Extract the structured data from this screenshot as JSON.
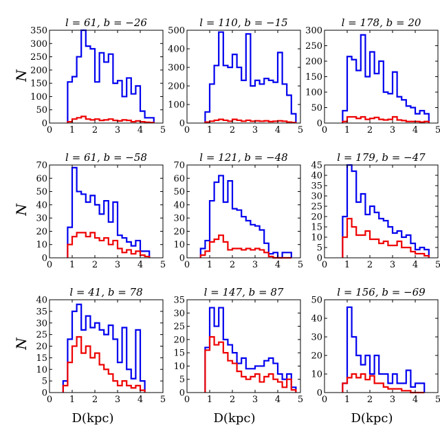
{
  "figure": {
    "ylabel": "N",
    "xlabel": "D(kpc)"
  },
  "colors": {
    "blue": "#0000ee",
    "red": "#ee0000"
  },
  "chart_data": [
    {
      "type": "histogram",
      "title": "l = 61, b = −26",
      "xlabel": "",
      "ylabel": "N",
      "xlim": [
        0,
        5
      ],
      "ylim": [
        0,
        350
      ],
      "xticks": [
        0,
        1,
        2,
        3,
        4,
        5
      ],
      "yticks": [
        0,
        50,
        100,
        150,
        200,
        250,
        300,
        350
      ],
      "bin_width": 0.2,
      "series": [
        {
          "name": "blue",
          "color": "#0000ee",
          "bin_starts": [
            0.8,
            1.0,
            1.2,
            1.4,
            1.6,
            1.8,
            2.0,
            2.2,
            2.4,
            2.6,
            2.8,
            3.0,
            3.2,
            3.4,
            3.6,
            3.8,
            4.0,
            4.2,
            4.4
          ],
          "counts": [
            155,
            175,
            250,
            350,
            290,
            280,
            155,
            265,
            230,
            260,
            150,
            160,
            100,
            170,
            110,
            140,
            45,
            20,
            20
          ]
        },
        {
          "name": "red",
          "color": "#ee0000",
          "bin_starts": [
            0.8,
            1.0,
            1.2,
            1.4,
            1.6,
            1.8,
            2.0,
            2.2,
            2.4,
            2.6,
            2.8,
            3.0,
            3.2,
            3.4,
            3.6,
            3.8,
            4.0,
            4.2,
            4.4
          ],
          "counts": [
            5,
            15,
            20,
            25,
            15,
            12,
            15,
            10,
            12,
            15,
            10,
            8,
            12,
            10,
            5,
            8,
            5,
            3,
            2
          ]
        }
      ]
    },
    {
      "type": "histogram",
      "title": "l = 110, b = −15",
      "xlabel": "",
      "ylabel": "",
      "xlim": [
        0,
        5
      ],
      "ylim": [
        0,
        500
      ],
      "xticks": [
        0,
        1,
        2,
        3,
        4,
        5
      ],
      "yticks": [
        0,
        100,
        200,
        300,
        400,
        500
      ],
      "bin_width": 0.2,
      "series": [
        {
          "name": "blue",
          "color": "#0000ee",
          "bin_starts": [
            0.8,
            1.0,
            1.2,
            1.4,
            1.6,
            1.8,
            2.0,
            2.2,
            2.4,
            2.6,
            2.8,
            3.0,
            3.2,
            3.4,
            3.6,
            3.8,
            4.0,
            4.2,
            4.4,
            4.6
          ],
          "counts": [
            60,
            210,
            310,
            490,
            310,
            300,
            370,
            300,
            230,
            480,
            200,
            230,
            210,
            240,
            230,
            220,
            380,
            210,
            150,
            50
          ]
        },
        {
          "name": "red",
          "color": "#ee0000",
          "bin_starts": [
            0.8,
            1.0,
            1.2,
            1.4,
            1.6,
            1.8,
            2.0,
            2.2,
            2.4,
            2.6,
            2.8,
            3.0,
            3.2,
            3.4,
            3.6,
            3.8,
            4.0,
            4.2,
            4.4,
            4.6
          ],
          "counts": [
            5,
            10,
            15,
            20,
            15,
            10,
            20,
            15,
            10,
            15,
            10,
            12,
            10,
            12,
            8,
            10,
            12,
            10,
            5,
            3
          ]
        }
      ]
    },
    {
      "type": "histogram",
      "title": "l = 178, b = 20",
      "xlabel": "",
      "ylabel": "",
      "xlim": [
        0,
        5
      ],
      "ylim": [
        0,
        300
      ],
      "xticks": [
        0,
        1,
        2,
        3,
        4,
        5
      ],
      "yticks": [
        0,
        50,
        100,
        150,
        200,
        250,
        300
      ],
      "bin_width": 0.2,
      "series": [
        {
          "name": "blue",
          "color": "#0000ee",
          "bin_starts": [
            0.8,
            1.0,
            1.2,
            1.4,
            1.6,
            1.8,
            2.0,
            2.2,
            2.4,
            2.6,
            2.8,
            3.0,
            3.2,
            3.4,
            3.6,
            3.8,
            4.0,
            4.2,
            4.4
          ],
          "counts": [
            40,
            215,
            205,
            170,
            285,
            150,
            230,
            160,
            200,
            100,
            95,
            165,
            85,
            75,
            55,
            50,
            30,
            40,
            30
          ]
        },
        {
          "name": "red",
          "color": "#ee0000",
          "bin_starts": [
            0.8,
            1.0,
            1.2,
            1.4,
            1.6,
            1.8,
            2.0,
            2.2,
            2.4,
            2.6,
            2.8,
            3.0,
            3.2,
            3.4,
            3.6,
            3.8,
            4.0,
            4.2,
            4.4
          ],
          "counts": [
            5,
            20,
            20,
            15,
            20,
            12,
            15,
            18,
            12,
            10,
            12,
            20,
            10,
            8,
            5,
            5,
            5,
            3,
            5
          ]
        }
      ]
    },
    {
      "type": "histogram",
      "title": "l = 61, b = −58",
      "xlabel": "",
      "ylabel": "N",
      "xlim": [
        0,
        5
      ],
      "ylim": [
        0,
        70
      ],
      "xticks": [
        0,
        1,
        2,
        3,
        4,
        5
      ],
      "yticks": [
        0,
        10,
        20,
        30,
        40,
        50,
        60,
        70
      ],
      "bin_width": 0.2,
      "series": [
        {
          "name": "blue",
          "color": "#0000ee",
          "bin_starts": [
            0.8,
            1.0,
            1.2,
            1.4,
            1.6,
            1.8,
            2.0,
            2.2,
            2.4,
            2.6,
            2.8,
            3.0,
            3.2,
            3.4,
            3.6,
            3.8,
            4.0,
            4.2
          ],
          "counts": [
            23,
            68,
            50,
            48,
            42,
            47,
            40,
            33,
            43,
            27,
            42,
            17,
            15,
            12,
            9,
            13,
            5,
            5
          ]
        },
        {
          "name": "red",
          "color": "#ee0000",
          "bin_starts": [
            0.8,
            1.0,
            1.2,
            1.4,
            1.6,
            1.8,
            2.0,
            2.2,
            2.4,
            2.6,
            2.8,
            3.0,
            3.2,
            3.4,
            3.6,
            3.8,
            4.0,
            4.2
          ],
          "counts": [
            10,
            16,
            19,
            19,
            16,
            19,
            15,
            13,
            15,
            10,
            13,
            7,
            4,
            6,
            3,
            5,
            2,
            1
          ]
        }
      ]
    },
    {
      "type": "histogram",
      "title": "l = 121, b = −48",
      "xlabel": "",
      "ylabel": "",
      "xlim": [
        0,
        5
      ],
      "ylim": [
        0,
        70
      ],
      "xticks": [
        0,
        1,
        2,
        3,
        4,
        5
      ],
      "yticks": [
        0,
        10,
        20,
        30,
        40,
        50,
        60,
        70
      ],
      "bin_width": 0.2,
      "series": [
        {
          "name": "blue",
          "color": "#0000ee",
          "bin_starts": [
            0.6,
            0.8,
            1.0,
            1.2,
            1.4,
            1.6,
            1.8,
            2.0,
            2.2,
            2.4,
            2.6,
            2.8,
            3.0,
            3.2,
            3.4,
            3.6,
            3.8,
            4.0,
            4.2,
            4.4
          ],
          "counts": [
            7,
            13,
            43,
            57,
            62,
            42,
            58,
            37,
            36,
            31,
            28,
            25,
            24,
            21,
            11,
            3,
            4,
            0,
            4,
            4
          ]
        },
        {
          "name": "red",
          "color": "#ee0000",
          "bin_starts": [
            0.6,
            0.8,
            1.0,
            1.2,
            1.4,
            1.6,
            1.8,
            2.0,
            2.2,
            2.4,
            2.6,
            2.8,
            3.0,
            3.2,
            3.4,
            3.6,
            3.8,
            4.0,
            4.2,
            4.4
          ],
          "counts": [
            2,
            5,
            12,
            14,
            17,
            12,
            6,
            7,
            7,
            6,
            7,
            6,
            7,
            6,
            4,
            1,
            0,
            0,
            0,
            0
          ]
        }
      ]
    },
    {
      "type": "histogram",
      "title": "l = 179, b = −47",
      "xlabel": "",
      "ylabel": "",
      "xlim": [
        0,
        5
      ],
      "ylim": [
        0,
        45
      ],
      "xticks": [
        0,
        1,
        2,
        3,
        4,
        5
      ],
      "yticks": [
        0,
        5,
        10,
        15,
        20,
        25,
        30,
        35,
        40,
        45
      ],
      "bin_width": 0.2,
      "series": [
        {
          "name": "blue",
          "color": "#0000ee",
          "bin_starts": [
            0.8,
            1.0,
            1.2,
            1.4,
            1.6,
            1.8,
            2.0,
            2.2,
            2.4,
            2.6,
            2.8,
            3.0,
            3.2,
            3.4,
            3.6,
            3.8,
            4.0,
            4.2,
            4.4
          ],
          "counts": [
            20,
            45,
            42,
            27,
            31,
            21,
            25,
            22,
            19,
            18,
            15,
            12,
            13,
            10,
            11,
            7,
            4,
            5,
            4
          ]
        },
        {
          "name": "red",
          "color": "#ee0000",
          "bin_starts": [
            0.8,
            1.0,
            1.2,
            1.4,
            1.6,
            1.8,
            2.0,
            2.2,
            2.4,
            2.6,
            2.8,
            3.0,
            3.2,
            3.4,
            3.6,
            3.8,
            4.0,
            4.2,
            4.4
          ],
          "counts": [
            10,
            19,
            15,
            11,
            11,
            13,
            9,
            9,
            7,
            8,
            6,
            6,
            8,
            5,
            5,
            3,
            2,
            2,
            1
          ]
        }
      ]
    },
    {
      "type": "histogram",
      "title": "l = 41, b = 78",
      "xlabel": "D(kpc)",
      "ylabel": "N",
      "xlim": [
        0,
        5
      ],
      "ylim": [
        0,
        40
      ],
      "xticks": [
        0,
        1,
        2,
        3,
        4,
        5
      ],
      "yticks": [
        0,
        5,
        10,
        15,
        20,
        25,
        30,
        35,
        40
      ],
      "bin_width": 0.2,
      "series": [
        {
          "name": "blue",
          "color": "#0000ee",
          "bin_starts": [
            0.6,
            0.8,
            1.0,
            1.2,
            1.4,
            1.6,
            1.8,
            2.0,
            2.2,
            2.4,
            2.6,
            2.8,
            3.0,
            3.2,
            3.4,
            3.6,
            3.8,
            4.0
          ],
          "counts": [
            5,
            23,
            35,
            38,
            27,
            33,
            28,
            30,
            27,
            25,
            29,
            23,
            13,
            28,
            10,
            6,
            27,
            5
          ]
        },
        {
          "name": "red",
          "color": "#ee0000",
          "bin_starts": [
            0.6,
            0.8,
            1.0,
            1.2,
            1.4,
            1.6,
            1.8,
            2.0,
            2.2,
            2.4,
            2.6,
            2.8,
            3.0,
            3.2,
            3.4,
            3.6,
            3.8,
            4.0
          ],
          "counts": [
            3,
            13,
            20,
            24,
            17,
            20,
            15,
            17,
            12,
            10,
            8,
            5,
            3,
            5,
            3,
            2,
            3,
            1
          ]
        }
      ]
    },
    {
      "type": "histogram",
      "title": "l = 147, b = 87",
      "xlabel": "D(kpc)",
      "ylabel": "",
      "xlim": [
        0,
        5
      ],
      "ylim": [
        0,
        35
      ],
      "xticks": [
        0,
        1,
        2,
        3,
        4,
        5
      ],
      "yticks": [
        0,
        5,
        10,
        15,
        20,
        25,
        30,
        35
      ],
      "bin_width": 0.2,
      "series": [
        {
          "name": "blue",
          "color": "#0000ee",
          "bin_starts": [
            0.8,
            1.0,
            1.2,
            1.4,
            1.6,
            1.8,
            2.0,
            2.2,
            2.4,
            2.6,
            2.8,
            3.0,
            3.2,
            3.4,
            3.6,
            3.8,
            4.0,
            4.2,
            4.4,
            4.6
          ],
          "counts": [
            17,
            32,
            25,
            32,
            20,
            18,
            15,
            11,
            13,
            9,
            9,
            10,
            10,
            12,
            13,
            11,
            7,
            5,
            7,
            2
          ]
        },
        {
          "name": "red",
          "color": "#ee0000",
          "bin_starts": [
            0.8,
            1.0,
            1.2,
            1.4,
            1.6,
            1.8,
            2.0,
            2.2,
            2.4,
            2.6,
            2.8,
            3.0,
            3.2,
            3.4,
            3.6,
            3.8,
            4.0,
            4.2,
            4.4,
            4.6
          ],
          "counts": [
            16,
            21,
            18,
            19,
            15,
            12,
            11,
            8,
            6,
            5,
            6,
            7,
            4,
            6,
            7,
            5,
            4,
            2,
            5,
            1
          ]
        }
      ]
    },
    {
      "type": "histogram",
      "title": "l = 156, b = −69",
      "xlabel": "D(kpc)",
      "ylabel": "",
      "xlim": [
        0,
        5
      ],
      "ylim": [
        0,
        50
      ],
      "xticks": [
        0,
        1,
        2,
        3,
        4,
        5
      ],
      "yticks": [
        0,
        10,
        20,
        30,
        40,
        50
      ],
      "bin_width": 0.2,
      "series": [
        {
          "name": "blue",
          "color": "#0000ee",
          "bin_starts": [
            0.8,
            1.0,
            1.2,
            1.4,
            1.6,
            1.8,
            2.0,
            2.2,
            2.4,
            2.6,
            2.8,
            3.0,
            3.2,
            3.4,
            3.6,
            3.8,
            4.0,
            4.2
          ],
          "counts": [
            5,
            46,
            30,
            20,
            15,
            20,
            10,
            20,
            10,
            10,
            5,
            10,
            5,
            5,
            12,
            3,
            5,
            5
          ]
        },
        {
          "name": "red",
          "color": "#ee0000",
          "bin_starts": [
            0.8,
            1.0,
            1.2,
            1.4,
            1.6,
            1.8,
            2.0,
            2.2,
            2.4,
            2.6,
            2.8,
            3.0,
            3.2,
            3.4,
            3.6,
            3.8,
            4.0,
            4.2
          ],
          "counts": [
            5,
            8,
            10,
            8,
            10,
            7,
            9,
            5,
            5,
            3,
            2,
            2,
            2,
            1,
            1,
            0,
            0,
            0
          ]
        }
      ]
    }
  ]
}
